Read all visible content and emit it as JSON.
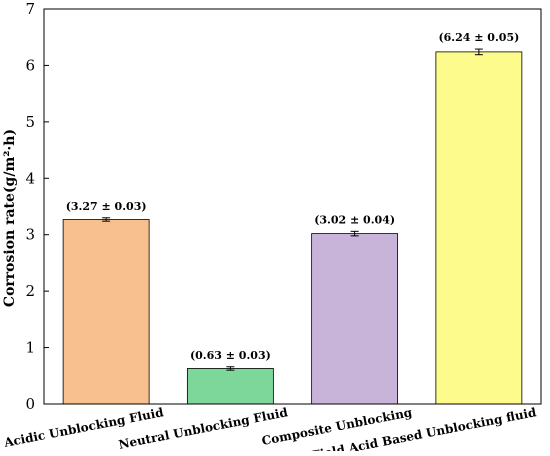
{
  "chart_data": {
    "type": "bar",
    "title": "",
    "xlabel": "",
    "ylabel": "Corrosion rate(g/m²·h)",
    "ylim": [
      0,
      7
    ],
    "yticks": [
      0,
      1,
      2,
      3,
      4,
      5,
      6,
      7
    ],
    "categories": [
      "Acidic Unblocking Fluid",
      "Neutral Unblocking Fluid",
      "Composite Unblocking",
      "Field Acid Based Unblocking fluid"
    ],
    "values": [
      3.27,
      0.63,
      3.02,
      6.24
    ],
    "errors": [
      0.03,
      0.03,
      0.04,
      0.05
    ],
    "data_labels": [
      "(3.27 ± 0.03)",
      "(0.63 ± 0.03)",
      "(3.02 ± 0.04)",
      "(6.24 ± 0.05)"
    ],
    "colors": [
      "#f9c08f",
      "#7dd69a",
      "#c8b3d9",
      "#fdfb8c"
    ],
    "grid": false,
    "legend": "none"
  }
}
